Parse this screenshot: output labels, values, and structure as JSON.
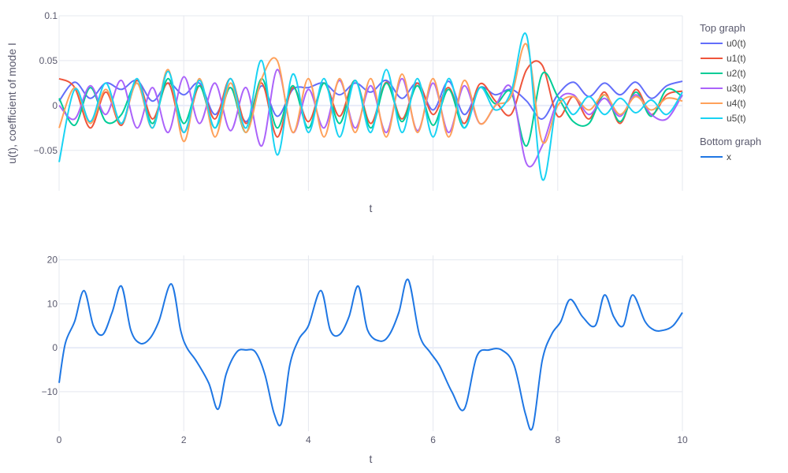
{
  "chart_data": [
    {
      "type": "line",
      "panel": "top",
      "xlabel": "t",
      "ylabel": "u(t), coefficient of mode I",
      "xlim": [
        0,
        10
      ],
      "ylim": [
        -0.095,
        0.1
      ],
      "x_ticks_shown": false,
      "yticks": [
        0.1,
        0.05,
        0,
        -0.05
      ],
      "ytick_labels": [
        "0.1",
        "0.05",
        "0",
        "−0.05"
      ],
      "grid": true,
      "legend_group": "Top graph",
      "series": [
        {
          "name": "u0(t)",
          "color": "#636efa",
          "x": [
            0,
            0.25,
            0.5,
            0.75,
            1.0,
            1.25,
            1.5,
            1.75,
            2.0,
            2.25,
            2.5,
            2.75,
            3.0,
            3.25,
            3.5,
            3.75,
            4.0,
            4.25,
            4.5,
            4.75,
            5.0,
            5.25,
            5.5,
            5.75,
            6.0,
            6.25,
            6.5,
            6.75,
            7.0,
            7.25,
            7.5,
            7.75,
            8.0,
            8.25,
            8.5,
            8.75,
            9.0,
            9.25,
            9.5,
            9.75,
            10.0
          ],
          "y": [
            0.005,
            0.026,
            0.008,
            0.025,
            0.018,
            0.028,
            0.005,
            0.025,
            0.012,
            0.025,
            -0.01,
            0.02,
            -0.018,
            0.022,
            -0.012,
            0.018,
            0.02,
            0.025,
            0.012,
            0.025,
            0.015,
            0.028,
            0.008,
            0.025,
            -0.005,
            0.027,
            -0.01,
            0.02,
            0.012,
            0.018,
            0.005,
            -0.015,
            0.012,
            0.026,
            0.01,
            0.025,
            0.012,
            0.026,
            0.008,
            0.022,
            0.027
          ]
        },
        {
          "name": "u1(t)",
          "color": "#ef553b",
          "x": [
            0,
            0.25,
            0.5,
            0.75,
            1.0,
            1.25,
            1.5,
            1.75,
            2.0,
            2.25,
            2.5,
            2.75,
            3.0,
            3.25,
            3.5,
            3.75,
            4.0,
            4.25,
            4.5,
            4.75,
            5.0,
            5.25,
            5.5,
            5.75,
            6.0,
            6.25,
            6.5,
            6.75,
            7.0,
            7.25,
            7.5,
            7.75,
            8.0,
            8.25,
            8.5,
            8.75,
            9.0,
            9.25,
            9.5,
            9.75,
            10.0
          ],
          "y": [
            0.03,
            0.02,
            -0.025,
            0.015,
            -0.022,
            0.028,
            -0.015,
            0.025,
            -0.03,
            0.022,
            -0.015,
            0.03,
            -0.02,
            0.025,
            -0.035,
            0.02,
            -0.018,
            0.025,
            -0.012,
            0.028,
            -0.02,
            0.026,
            -0.015,
            0.025,
            -0.01,
            0.02,
            -0.02,
            0.024,
            0.005,
            -0.01,
            0.04,
            0.045,
            -0.012,
            0.01,
            -0.015,
            0.015,
            -0.02,
            0.018,
            -0.01,
            0.012,
            0.016
          ]
        },
        {
          "name": "u2(t)",
          "color": "#00cc96",
          "x": [
            0,
            0.25,
            0.5,
            0.75,
            1.0,
            1.25,
            1.5,
            1.75,
            2.0,
            2.25,
            2.5,
            2.75,
            3.0,
            3.25,
            3.5,
            3.75,
            4.0,
            4.25,
            4.5,
            4.75,
            5.0,
            5.25,
            5.5,
            5.75,
            6.0,
            6.25,
            6.5,
            6.75,
            7.0,
            7.25,
            7.5,
            7.75,
            8.0,
            8.25,
            8.5,
            8.75,
            9.0,
            9.25,
            9.5,
            9.75,
            10.0
          ],
          "y": [
            0.008,
            -0.022,
            0.02,
            -0.018,
            -0.01,
            0.025,
            -0.02,
            0.03,
            -0.02,
            0.022,
            -0.025,
            0.02,
            -0.03,
            0.03,
            -0.025,
            0.022,
            -0.025,
            0.025,
            -0.02,
            0.028,
            -0.025,
            0.025,
            -0.018,
            0.022,
            -0.022,
            0.018,
            -0.025,
            0.02,
            0.002,
            0.015,
            -0.045,
            0.035,
            0.01,
            -0.018,
            -0.02,
            0.012,
            -0.018,
            0.015,
            -0.012,
            0.018,
            0.01
          ]
        },
        {
          "name": "u3(t)",
          "color": "#ab63fa",
          "x": [
            0,
            0.25,
            0.5,
            0.75,
            1.0,
            1.25,
            1.5,
            1.75,
            2.0,
            2.25,
            2.5,
            2.75,
            3.0,
            3.25,
            3.5,
            3.75,
            4.0,
            4.25,
            4.5,
            4.75,
            5.0,
            5.25,
            5.5,
            5.75,
            6.0,
            6.25,
            6.5,
            6.75,
            7.0,
            7.25,
            7.5,
            7.75,
            8.0,
            8.25,
            8.5,
            8.75,
            9.0,
            9.25,
            9.5,
            9.75,
            10.0
          ],
          "y": [
            0.0,
            -0.015,
            0.022,
            -0.01,
            0.028,
            -0.025,
            0.02,
            -0.03,
            0.032,
            -0.02,
            0.025,
            -0.028,
            0.02,
            -0.045,
            0.04,
            -0.03,
            0.018,
            -0.025,
            0.028,
            -0.025,
            0.022,
            -0.03,
            0.03,
            -0.028,
            0.025,
            -0.03,
            0.022,
            -0.02,
            0.0,
            0.02,
            -0.065,
            -0.045,
            0.005,
            0.012,
            -0.01,
            0.008,
            -0.012,
            0.012,
            -0.01,
            -0.015,
            0.012
          ]
        },
        {
          "name": "u4(t)",
          "color": "#ffa15a",
          "x": [
            0,
            0.25,
            0.5,
            0.75,
            1.0,
            1.25,
            1.5,
            1.75,
            2.0,
            2.25,
            2.5,
            2.75,
            3.0,
            3.25,
            3.5,
            3.75,
            4.0,
            4.25,
            4.5,
            4.75,
            5.0,
            5.25,
            5.5,
            5.75,
            6.0,
            6.25,
            6.5,
            6.75,
            7.0,
            7.25,
            7.5,
            7.75,
            8.0,
            8.25,
            8.5,
            8.75,
            9.0,
            9.25,
            9.5,
            9.75,
            10.0
          ],
          "y": [
            -0.025,
            0.02,
            -0.02,
            0.018,
            -0.02,
            0.025,
            -0.025,
            0.04,
            -0.04,
            0.03,
            -0.035,
            0.025,
            -0.03,
            0.03,
            0.05,
            -0.03,
            0.03,
            -0.035,
            0.03,
            -0.03,
            0.03,
            -0.035,
            0.035,
            -0.03,
            0.03,
            -0.035,
            0.028,
            -0.02,
            0.0,
            0.01,
            0.068,
            -0.04,
            0.0,
            0.01,
            -0.005,
            0.012,
            -0.01,
            0.01,
            -0.005,
            0.008,
            0.005
          ]
        },
        {
          "name": "u5(t)",
          "color": "#19d3f3",
          "x": [
            0,
            0.25,
            0.5,
            0.75,
            1.0,
            1.25,
            1.5,
            1.75,
            2.0,
            2.25,
            2.5,
            2.75,
            3.0,
            3.25,
            3.5,
            3.75,
            4.0,
            4.25,
            4.5,
            4.75,
            5.0,
            5.25,
            5.5,
            5.75,
            6.0,
            6.25,
            6.5,
            6.75,
            7.0,
            7.25,
            7.5,
            7.75,
            8.0,
            8.25,
            8.5,
            8.75,
            9.0,
            9.25,
            9.5,
            9.75,
            10.0
          ],
          "y": [
            -0.063,
            0.018,
            -0.018,
            0.025,
            -0.02,
            0.03,
            -0.025,
            0.038,
            -0.03,
            0.028,
            -0.025,
            0.03,
            -0.025,
            0.05,
            -0.055,
            0.035,
            -0.03,
            0.03,
            -0.035,
            0.028,
            -0.03,
            0.04,
            -0.03,
            0.03,
            -0.035,
            0.03,
            -0.025,
            0.02,
            -0.005,
            0.015,
            0.078,
            -0.082,
            0.005,
            -0.01,
            0.01,
            -0.01,
            0.008,
            -0.008,
            0.006,
            -0.01,
            0.015
          ]
        }
      ]
    },
    {
      "type": "line",
      "panel": "bottom",
      "xlabel": "t",
      "ylabel": "",
      "xlim": [
        0,
        10
      ],
      "ylim": [
        -19,
        21
      ],
      "xticks": [
        0,
        2,
        4,
        6,
        8,
        10
      ],
      "xtick_labels": [
        "0",
        "2",
        "4",
        "6",
        "8",
        "10"
      ],
      "yticks": [
        20,
        10,
        0,
        -10
      ],
      "ytick_labels": [
        "20",
        "10",
        "0",
        "−10"
      ],
      "grid": true,
      "legend_group": "Bottom graph",
      "series": [
        {
          "name": "x",
          "color": "#1f77e4",
          "x": [
            0,
            0.1,
            0.25,
            0.4,
            0.55,
            0.7,
            0.85,
            1.0,
            1.15,
            1.3,
            1.45,
            1.6,
            1.8,
            1.95,
            2.05,
            2.2,
            2.4,
            2.55,
            2.68,
            2.85,
            3.0,
            3.15,
            3.3,
            3.45,
            3.57,
            3.7,
            3.85,
            4.0,
            4.2,
            4.35,
            4.5,
            4.65,
            4.8,
            4.95,
            5.15,
            5.3,
            5.45,
            5.6,
            5.78,
            5.95,
            6.1,
            6.3,
            6.5,
            6.7,
            6.9,
            7.1,
            7.3,
            7.48,
            7.6,
            7.75,
            7.9,
            8.05,
            8.2,
            8.4,
            8.6,
            8.75,
            8.9,
            9.05,
            9.2,
            9.4,
            9.55,
            9.7,
            9.85,
            10.0
          ],
          "y": [
            -8,
            1,
            6,
            13,
            5,
            3,
            8,
            14,
            4,
            1,
            2,
            6,
            14.5,
            4,
            0,
            -3,
            -8,
            -14,
            -6,
            -1,
            -0.5,
            -1,
            -6,
            -15,
            -17,
            -4,
            2,
            5,
            13,
            4,
            3,
            7,
            14,
            4,
            1.5,
            3,
            8,
            15.5,
            3,
            -1,
            -4,
            -10,
            -14,
            -2,
            -0.5,
            -0.5,
            -4,
            -15,
            -18,
            -3,
            3,
            6,
            11,
            7,
            5,
            12,
            7,
            5,
            12,
            6,
            4,
            4,
            5,
            8
          ]
        }
      ]
    }
  ],
  "legend": {
    "groups": [
      {
        "title": "Top graph",
        "items": [
          "u0(t)",
          "u1(t)",
          "u2(t)",
          "u3(t)",
          "u4(t)",
          "u5(t)"
        ]
      },
      {
        "title": "Bottom graph",
        "items": [
          "x"
        ]
      }
    ]
  }
}
